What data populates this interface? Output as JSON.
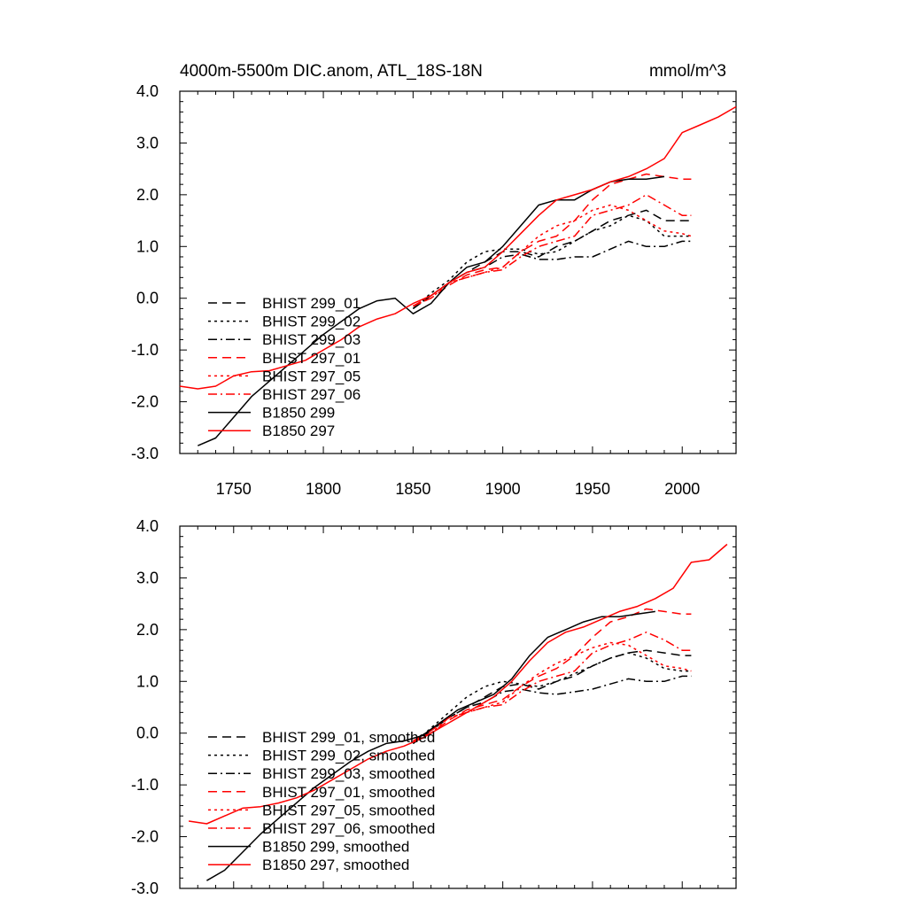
{
  "chart_data": [
    {
      "type": "line",
      "title": "4000m-5500m DIC.anom, ATL_18S-18N",
      "units": "mmol/m^3",
      "xlabel": "",
      "ylabel": "",
      "xlim": [
        1720,
        2030
      ],
      "ylim": [
        -3.0,
        4.0
      ],
      "xticks": [
        "1750",
        "1800",
        "1850",
        "1900",
        "1950",
        "2000"
      ],
      "yticks": [
        "4.0",
        "3.0",
        "2.0",
        "1.0",
        "0.0",
        "-1.0",
        "-2.0",
        "-3.0"
      ],
      "show_x_tick_labels": true,
      "grid": false,
      "legend_position": "lower-left",
      "series": [
        {
          "name": "BHIST 299_01",
          "color": "#000000",
          "dash": "dash",
          "x": [
            1850,
            1860,
            1870,
            1880,
            1890,
            1900,
            1910,
            1920,
            1930,
            1940,
            1950,
            1960,
            1970,
            1980,
            1990,
            2000,
            2005
          ],
          "y": [
            -0.2,
            0.05,
            0.3,
            0.5,
            0.7,
            0.9,
            0.9,
            0.8,
            1.0,
            1.1,
            1.3,
            1.5,
            1.6,
            1.7,
            1.5,
            1.5,
            1.5
          ]
        },
        {
          "name": "BHIST 299_02",
          "color": "#000000",
          "dash": "dot",
          "x": [
            1850,
            1860,
            1870,
            1880,
            1890,
            1900,
            1910,
            1920,
            1930,
            1940,
            1950,
            1960,
            1970,
            1980,
            1990,
            2000,
            2005
          ],
          "y": [
            -0.2,
            0.1,
            0.35,
            0.7,
            0.9,
            0.95,
            0.95,
            0.85,
            0.9,
            1.1,
            1.3,
            1.4,
            1.6,
            1.5,
            1.2,
            1.2,
            1.2
          ]
        },
        {
          "name": "BHIST 299_03",
          "color": "#000000",
          "dash": "dashdot",
          "x": [
            1850,
            1860,
            1870,
            1880,
            1890,
            1900,
            1910,
            1920,
            1930,
            1940,
            1950,
            1960,
            1970,
            1980,
            1990,
            2000,
            2005
          ],
          "y": [
            -0.2,
            0.05,
            0.3,
            0.5,
            0.6,
            0.8,
            0.85,
            0.75,
            0.75,
            0.8,
            0.8,
            0.95,
            1.1,
            1.0,
            1.0,
            1.1,
            1.1
          ]
        },
        {
          "name": "BHIST 297_01",
          "color": "#ff0000",
          "dash": "dash",
          "x": [
            1850,
            1860,
            1870,
            1880,
            1890,
            1900,
            1910,
            1920,
            1930,
            1940,
            1950,
            1960,
            1970,
            1980,
            1990,
            2000,
            2005
          ],
          "y": [
            -0.15,
            0.0,
            0.25,
            0.45,
            0.55,
            0.6,
            0.9,
            1.1,
            1.2,
            1.5,
            1.9,
            2.2,
            2.3,
            2.4,
            2.35,
            2.3,
            2.3
          ]
        },
        {
          "name": "BHIST 297_05",
          "color": "#ff0000",
          "dash": "dot",
          "x": [
            1850,
            1860,
            1870,
            1880,
            1890,
            1900,
            1910,
            1920,
            1930,
            1940,
            1950,
            1960,
            1970,
            1980,
            1990,
            2000,
            2005
          ],
          "y": [
            -0.15,
            0.0,
            0.3,
            0.4,
            0.5,
            0.6,
            0.9,
            1.2,
            1.4,
            1.5,
            1.7,
            1.8,
            1.7,
            1.5,
            1.3,
            1.25,
            1.2
          ]
        },
        {
          "name": "BHIST 297_06",
          "color": "#ff0000",
          "dash": "dashdot",
          "x": [
            1850,
            1860,
            1870,
            1880,
            1890,
            1900,
            1910,
            1920,
            1930,
            1940,
            1950,
            1960,
            1970,
            1980,
            1990,
            2000,
            2005
          ],
          "y": [
            -0.15,
            0.05,
            0.3,
            0.4,
            0.5,
            0.55,
            0.8,
            1.0,
            1.1,
            1.2,
            1.6,
            1.7,
            1.8,
            2.0,
            1.8,
            1.6,
            1.6
          ]
        },
        {
          "name": "B1850 299",
          "color": "#000000",
          "dash": "solid",
          "x": [
            1730,
            1740,
            1750,
            1760,
            1770,
            1780,
            1790,
            1800,
            1810,
            1820,
            1830,
            1840,
            1850,
            1860,
            1870,
            1880,
            1890,
            1900,
            1910,
            1920,
            1930,
            1940,
            1950,
            1960,
            1970,
            1980,
            1990
          ],
          "y": [
            -2.85,
            -2.7,
            -2.3,
            -1.9,
            -1.6,
            -1.3,
            -1.0,
            -0.7,
            -0.45,
            -0.2,
            -0.05,
            0.0,
            -0.3,
            -0.1,
            0.3,
            0.6,
            0.7,
            1.0,
            1.4,
            1.8,
            1.9,
            1.9,
            2.1,
            2.25,
            2.3,
            2.3,
            2.35
          ]
        },
        {
          "name": "B1850 297",
          "color": "#ff0000",
          "dash": "solid",
          "x": [
            1720,
            1730,
            1740,
            1750,
            1760,
            1770,
            1780,
            1790,
            1800,
            1810,
            1820,
            1830,
            1840,
            1850,
            1860,
            1870,
            1880,
            1890,
            1900,
            1910,
            1920,
            1930,
            1940,
            1950,
            1960,
            1970,
            1980,
            1990,
            2000,
            2010,
            2020,
            2030
          ],
          "y": [
            -1.7,
            -1.75,
            -1.7,
            -1.5,
            -1.42,
            -1.4,
            -1.3,
            -1.2,
            -1.0,
            -0.8,
            -0.55,
            -0.4,
            -0.3,
            -0.1,
            0.05,
            0.3,
            0.5,
            0.6,
            0.9,
            1.25,
            1.6,
            1.9,
            2.0,
            2.1,
            2.25,
            2.35,
            2.5,
            2.7,
            3.2,
            3.35,
            3.5,
            3.7
          ]
        }
      ]
    },
    {
      "type": "line",
      "title": "",
      "units": "",
      "xlabel": "",
      "ylabel": "",
      "xlim": [
        1720,
        2030
      ],
      "ylim": [
        -3.0,
        4.0
      ],
      "xticks": [],
      "yticks": [
        "4.0",
        "3.0",
        "2.0",
        "1.0",
        "0.0",
        "-1.0",
        "-2.0",
        "-3.0"
      ],
      "show_x_tick_labels": false,
      "grid": false,
      "legend_position": "lower-left",
      "series": [
        {
          "name": "BHIST 299_01, smoothed",
          "color": "#000000",
          "dash": "dash",
          "x": [
            1850,
            1860,
            1870,
            1880,
            1890,
            1900,
            1910,
            1920,
            1930,
            1940,
            1950,
            1960,
            1970,
            1980,
            1990,
            2000,
            2005
          ],
          "y": [
            -0.2,
            0.05,
            0.3,
            0.5,
            0.7,
            0.9,
            0.95,
            0.85,
            1.0,
            1.1,
            1.3,
            1.45,
            1.55,
            1.6,
            1.55,
            1.5,
            1.5
          ]
        },
        {
          "name": "BHIST 299_02, smoothed",
          "color": "#000000",
          "dash": "dot",
          "x": [
            1850,
            1860,
            1870,
            1880,
            1890,
            1900,
            1910,
            1920,
            1930,
            1940,
            1950,
            1960,
            1970,
            1980,
            1990,
            2000,
            2005
          ],
          "y": [
            -0.2,
            0.1,
            0.4,
            0.7,
            0.9,
            1.0,
            0.95,
            0.9,
            1.0,
            1.15,
            1.3,
            1.45,
            1.55,
            1.45,
            1.25,
            1.2,
            1.2
          ]
        },
        {
          "name": "BHIST 299_03, smoothed",
          "color": "#000000",
          "dash": "dashdot",
          "x": [
            1850,
            1860,
            1870,
            1880,
            1890,
            1900,
            1910,
            1920,
            1930,
            1940,
            1950,
            1960,
            1970,
            1980,
            1990,
            2000,
            2005
          ],
          "y": [
            -0.2,
            0.05,
            0.3,
            0.5,
            0.6,
            0.8,
            0.85,
            0.78,
            0.75,
            0.8,
            0.85,
            0.95,
            1.05,
            1.0,
            1.0,
            1.1,
            1.1
          ]
        },
        {
          "name": "BHIST 297_01, smoothed",
          "color": "#ff0000",
          "dash": "dash",
          "x": [
            1850,
            1860,
            1870,
            1880,
            1890,
            1900,
            1910,
            1920,
            1930,
            1940,
            1950,
            1960,
            1970,
            1980,
            1990,
            2000,
            2005
          ],
          "y": [
            -0.15,
            0.0,
            0.25,
            0.45,
            0.55,
            0.65,
            0.9,
            1.1,
            1.25,
            1.5,
            1.85,
            2.15,
            2.25,
            2.4,
            2.35,
            2.3,
            2.3
          ]
        },
        {
          "name": "BHIST 297_05, smoothed",
          "color": "#ff0000",
          "dash": "dot",
          "x": [
            1850,
            1860,
            1870,
            1880,
            1890,
            1900,
            1910,
            1920,
            1930,
            1940,
            1950,
            1960,
            1970,
            1980,
            1990,
            2000,
            2005
          ],
          "y": [
            -0.15,
            0.0,
            0.3,
            0.4,
            0.5,
            0.6,
            0.9,
            1.15,
            1.35,
            1.5,
            1.65,
            1.75,
            1.7,
            1.5,
            1.3,
            1.25,
            1.2
          ]
        },
        {
          "name": "BHIST 297_06, smoothed",
          "color": "#ff0000",
          "dash": "dashdot",
          "x": [
            1850,
            1860,
            1870,
            1880,
            1890,
            1900,
            1910,
            1920,
            1930,
            1940,
            1950,
            1960,
            1970,
            1980,
            1990,
            2000,
            2005
          ],
          "y": [
            -0.15,
            0.05,
            0.3,
            0.4,
            0.5,
            0.55,
            0.8,
            1.0,
            1.1,
            1.2,
            1.55,
            1.7,
            1.8,
            1.95,
            1.8,
            1.6,
            1.6
          ]
        },
        {
          "name": "B1850 299, smoothed",
          "color": "#000000",
          "dash": "solid",
          "x": [
            1735,
            1745,
            1755,
            1765,
            1775,
            1785,
            1795,
            1805,
            1815,
            1825,
            1835,
            1845,
            1855,
            1865,
            1875,
            1885,
            1895,
            1905,
            1915,
            1925,
            1935,
            1945,
            1955,
            1965,
            1975,
            1985
          ],
          "y": [
            -2.85,
            -2.65,
            -2.3,
            -1.95,
            -1.65,
            -1.35,
            -1.05,
            -0.8,
            -0.55,
            -0.35,
            -0.2,
            -0.15,
            -0.05,
            0.2,
            0.45,
            0.6,
            0.75,
            1.05,
            1.5,
            1.85,
            2.0,
            2.15,
            2.25,
            2.25,
            2.3,
            2.35
          ]
        },
        {
          "name": "B1850 297, smoothed",
          "color": "#ff0000",
          "dash": "solid",
          "x": [
            1725,
            1735,
            1745,
            1755,
            1765,
            1775,
            1785,
            1795,
            1805,
            1815,
            1825,
            1835,
            1845,
            1855,
            1865,
            1875,
            1885,
            1895,
            1905,
            1915,
            1925,
            1935,
            1945,
            1955,
            1965,
            1975,
            1985,
            1995,
            2005,
            2015,
            2025
          ],
          "y": [
            -1.7,
            -1.75,
            -1.6,
            -1.45,
            -1.42,
            -1.35,
            -1.25,
            -1.1,
            -0.9,
            -0.7,
            -0.5,
            -0.35,
            -0.25,
            -0.1,
            0.1,
            0.3,
            0.5,
            0.7,
            1.0,
            1.4,
            1.75,
            1.95,
            2.05,
            2.2,
            2.35,
            2.45,
            2.6,
            2.8,
            3.3,
            3.35,
            3.65
          ]
        }
      ]
    }
  ]
}
